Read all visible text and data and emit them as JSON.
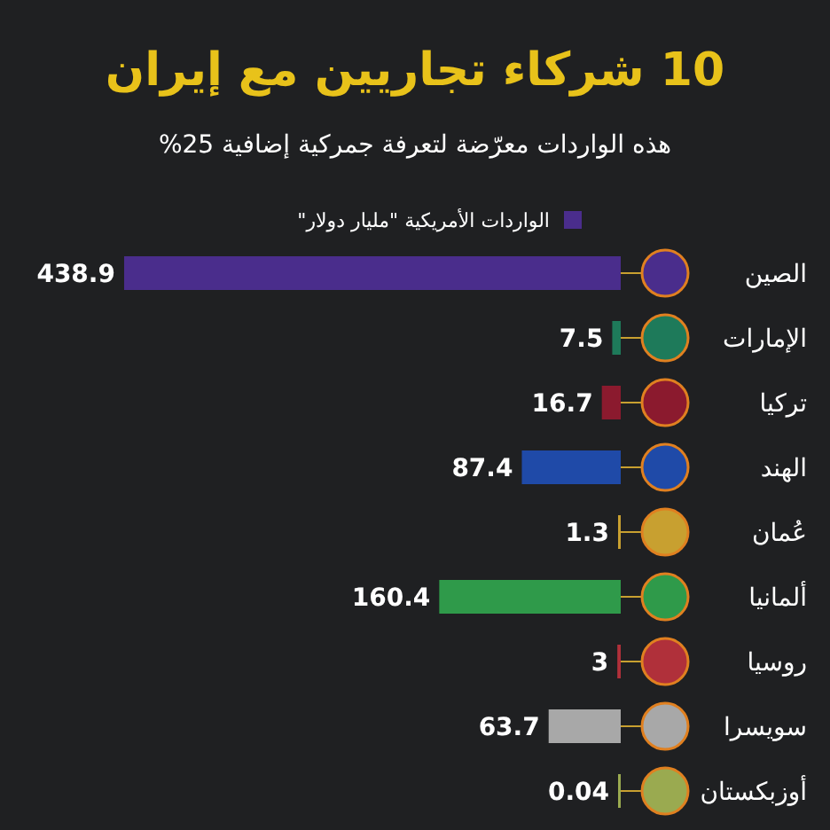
{
  "chart_data": {
    "type": "bar",
    "orientation": "horizontal",
    "title": "10 شركاء تجاريين مع إيران",
    "subtitle": "هذه الواردات معرّضة لتعرفة جمركية إضافية 25%",
    "categories": [
      "الصين",
      "الإمارات",
      "تركيا",
      "الهند",
      "عُمان",
      "ألمانيا",
      "روسيا",
      "سويسرا",
      "أوزبكستان"
    ],
    "series": [
      {
        "name": "الواردات الأمريكية \"مليار دولار\"",
        "color": "#4a2d8c",
        "values": [
          438.9,
          7.5,
          16.7,
          87.4,
          1.3,
          160.4,
          3,
          63.7,
          0.04
        ],
        "colors": [
          "#4a2d8c",
          "#1e7a5a",
          "#8b1a2e",
          "#1f4aa8",
          "#c8a030",
          "#2f9a4a",
          "#b0303a",
          "#a8a8a8",
          "#9aaa50"
        ]
      }
    ],
    "data_labels": true,
    "legend": "top"
  }
}
